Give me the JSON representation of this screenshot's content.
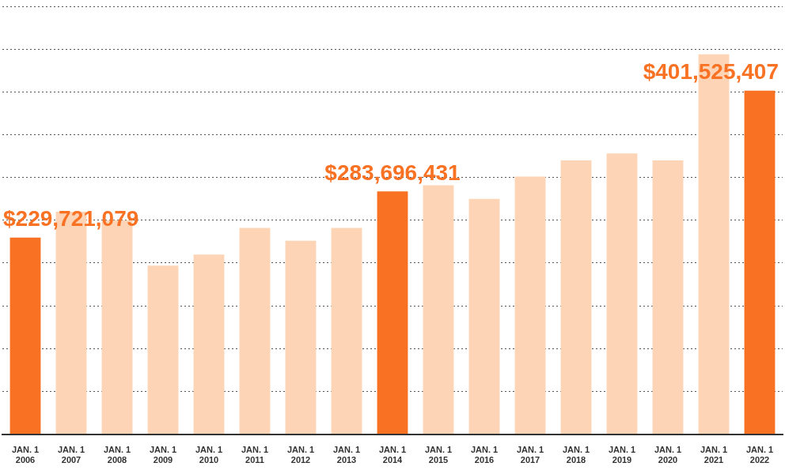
{
  "chart_data": {
    "type": "bar",
    "categories": [
      "JAN. 1\n2006",
      "JAN. 1\n2007",
      "JAN. 1\n2008",
      "JAN. 1\n2009",
      "JAN. 1\n2010",
      "JAN. 1\n2011",
      "JAN. 1\n2012",
      "JAN. 1\n2013",
      "JAN. 1\n2014",
      "JAN. 1\n2015",
      "JAN. 1\n2016",
      "JAN. 1\n2017",
      "JAN. 1\n2018",
      "JAN. 1\n2019",
      "JAN. 1\n2020",
      "JAN. 1\n2021",
      "JAN. 1\n2022"
    ],
    "values": [
      229721079,
      260000000,
      250000000,
      197000000,
      210000000,
      241000000,
      226000000,
      241000000,
      283696431,
      291000000,
      275000000,
      301000000,
      320000000,
      328000000,
      320000000,
      444000000,
      401525407
    ],
    "value_labels": [
      "$229,721,079",
      null,
      null,
      null,
      null,
      null,
      null,
      null,
      "$283,696,431",
      null,
      null,
      null,
      null,
      null,
      null,
      null,
      "$401,525,407"
    ],
    "data_labels": true,
    "colors": [
      "#f97224",
      "#fdd5b6",
      "#fdd5b6",
      "#fdd5b6",
      "#fdd5b6",
      "#fdd5b6",
      "#fdd5b6",
      "#fdd5b6",
      "#f97224",
      "#fdd5b6",
      "#fdd5b6",
      "#fdd5b6",
      "#fdd5b6",
      "#fdd5b6",
      "#fdd5b6",
      "#fdd5b6",
      "#f97224"
    ],
    "ylim": [
      0,
      500000000
    ],
    "yticks": [
      0,
      50000000,
      100000000,
      150000000,
      200000000,
      250000000,
      300000000,
      350000000,
      400000000,
      450000000,
      500000000
    ],
    "grid": true,
    "tick_labels": "x"
  }
}
